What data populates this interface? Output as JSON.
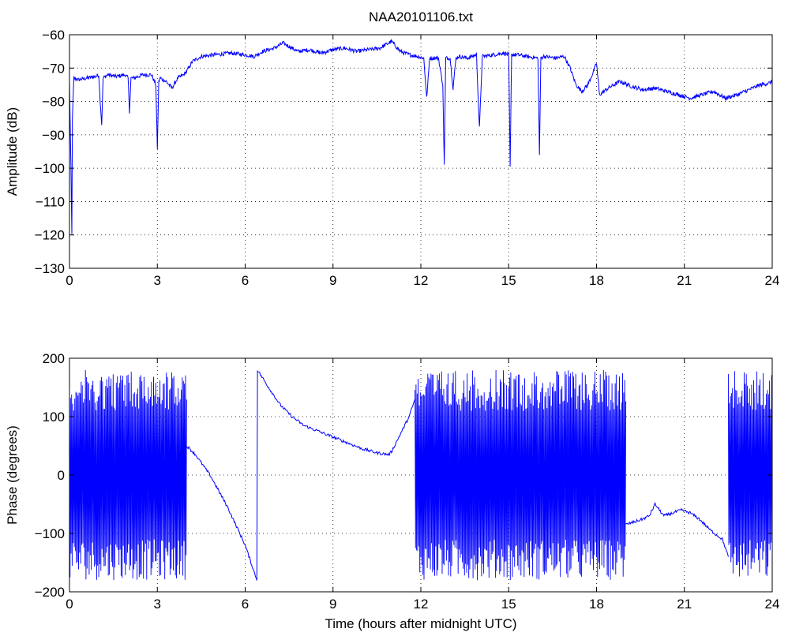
{
  "chart_data": [
    {
      "type": "line",
      "title": "NAA20101106.txt",
      "xlabel": "",
      "ylabel": "Amplitude (dB)",
      "xlim": [
        0,
        24
      ],
      "ylim": [
        -130,
        -60
      ],
      "xticks": [
        0,
        3,
        6,
        9,
        12,
        15,
        18,
        21,
        24
      ],
      "yticks": [
        -130,
        -120,
        -110,
        -100,
        -90,
        -80,
        -70,
        -60
      ],
      "xtick_labels": [
        "0",
        "3",
        "6",
        "9",
        "12",
        "15",
        "18",
        "21",
        "24"
      ],
      "ytick_labels": [
        "−130",
        "−120",
        "−110",
        "−100",
        "−90",
        "−80",
        "−70",
        "−60"
      ],
      "grid": true,
      "color": "#0000ff",
      "series": [
        {
          "x": [
            0,
            0.05,
            0.08,
            0.1,
            0.15,
            0.3,
            0.6,
            0.9,
            1.0,
            1.05,
            1.1,
            1.15,
            1.3,
            1.6,
            1.9,
            2.0,
            2.05,
            2.1,
            2.2,
            2.5,
            2.8,
            2.95,
            3.0,
            3.05,
            3.1,
            3.3,
            3.5,
            3.7,
            3.9,
            4.0,
            4.2,
            4.5,
            5.0,
            5.5,
            6.0,
            6.3,
            6.6,
            7.0,
            7.3,
            7.5,
            7.8,
            8.2,
            8.6,
            9.0,
            9.4,
            9.8,
            10.2,
            10.6,
            11.0,
            11.3,
            11.6,
            11.9,
            12.1,
            12.2,
            12.3,
            12.6,
            12.75,
            12.8,
            12.85,
            13.0,
            13.1,
            13.2,
            13.3,
            13.6,
            13.9,
            14.0,
            14.1,
            14.5,
            14.8,
            15.0,
            15.05,
            15.1,
            15.3,
            15.6,
            16.0,
            16.05,
            16.1,
            16.2,
            16.6,
            16.9,
            17.1,
            17.3,
            17.5,
            17.7,
            17.9,
            18.0,
            18.1,
            18.4,
            18.8,
            19.2,
            19.6,
            20.0,
            20.4,
            20.8,
            21.0,
            21.2,
            21.6,
            22.0,
            22.2,
            22.4,
            22.8,
            23.2,
            23.6,
            23.9,
            24.0
          ],
          "values": [
            -73,
            -100,
            -120,
            -85,
            -73,
            -73.5,
            -73,
            -72.5,
            -72,
            -80,
            -87,
            -73,
            -72,
            -72.5,
            -72,
            -73,
            -83,
            -73,
            -73,
            -72,
            -72,
            -75,
            -94,
            -74,
            -73,
            -74,
            -76,
            -73,
            -72,
            -71,
            -68,
            -66.5,
            -66,
            -65.5,
            -66,
            -66.5,
            -65,
            -64,
            -62.5,
            -63.5,
            -65,
            -64.5,
            -65.5,
            -64.5,
            -64,
            -65,
            -64.5,
            -64,
            -62,
            -65,
            -66,
            -66.5,
            -67,
            -79,
            -67,
            -67,
            -75,
            -99,
            -67,
            -67,
            -76,
            -67,
            -66.5,
            -67,
            -66,
            -88,
            -66.5,
            -66,
            -65.5,
            -66,
            -100,
            -66,
            -66,
            -66.5,
            -67,
            -96,
            -67,
            -66.5,
            -67,
            -66.5,
            -70,
            -75,
            -77,
            -75,
            -71,
            -68.5,
            -78,
            -76,
            -74,
            -75.5,
            -76.5,
            -76,
            -77,
            -78,
            -78.5,
            -79,
            -78,
            -77,
            -78,
            -79,
            -78,
            -76.5,
            -75,
            -74.5,
            -74
          ]
        }
      ]
    },
    {
      "type": "line",
      "title": "",
      "xlabel": "Time (hours after midnight UTC)",
      "ylabel": "Phase (degrees)",
      "xlim": [
        0,
        24
      ],
      "ylim": [
        -200,
        200
      ],
      "xticks": [
        0,
        3,
        6,
        9,
        12,
        15,
        18,
        21,
        24
      ],
      "yticks": [
        -200,
        -100,
        0,
        100,
        200
      ],
      "xtick_labels": [
        "0",
        "3",
        "6",
        "9",
        "12",
        "15",
        "18",
        "21",
        "24"
      ],
      "ytick_labels": [
        "−200",
        "−100",
        "0",
        "100",
        "200"
      ],
      "grid": true,
      "color": "#0000ff",
      "segments": [
        {
          "kind": "wrapped",
          "x": [
            0.0,
            4.0
          ],
          "range": [
            -180,
            180
          ]
        },
        {
          "kind": "line",
          "x": [
            4.0,
            4.3,
            4.8,
            5.4,
            6.0,
            6.4
          ],
          "values": [
            50,
            35,
            0,
            -55,
            -120,
            -180
          ]
        },
        {
          "kind": "line",
          "x": [
            6.4,
            6.42,
            6.8,
            7.2,
            7.6,
            8.0,
            8.5,
            9.0,
            9.5,
            10.0,
            10.5,
            10.9,
            11.0,
            11.3,
            11.6,
            11.8
          ],
          "values": [
            -180,
            180,
            150,
            120,
            100,
            85,
            75,
            65,
            55,
            45,
            38,
            35,
            40,
            70,
            100,
            130
          ]
        },
        {
          "kind": "wrapped",
          "x": [
            11.8,
            19.0
          ],
          "range": [
            -180,
            180
          ]
        },
        {
          "kind": "line",
          "x": [
            19.0,
            19.3,
            19.6,
            19.8,
            20.0,
            20.3,
            20.6,
            20.9,
            21.2,
            21.5,
            21.9,
            22.3,
            22.5
          ],
          "values": [
            -85,
            -80,
            -75,
            -70,
            -50,
            -70,
            -65,
            -60,
            -65,
            -75,
            -95,
            -110,
            -140
          ]
        },
        {
          "kind": "wrapped",
          "x": [
            22.5,
            24.0
          ],
          "range": [
            -180,
            180
          ]
        }
      ]
    }
  ]
}
